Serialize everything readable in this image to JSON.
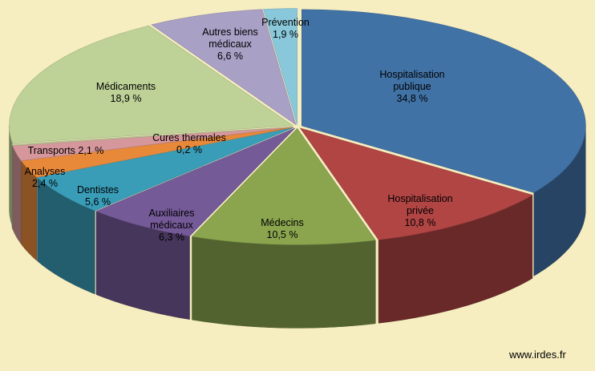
{
  "chart_data": {
    "type": "pie",
    "subtype": "3d-exploded",
    "start_angle": "12 o'clock",
    "direction": "clockwise",
    "series": [
      {
        "name": "Hospitalisation publique",
        "label_lines": [
          "Hospitalisation",
          "publique",
          "34,8 %"
        ],
        "value": 34.8,
        "color": "#4172A6"
      },
      {
        "name": "Hospitalisation privée",
        "label_lines": [
          "Hospitalisation",
          "privée",
          "10,8 %"
        ],
        "value": 10.8,
        "color": "#B14544"
      },
      {
        "name": "Médecins",
        "label_lines": [
          "Médecins",
          "10,5 %"
        ],
        "value": 10.5,
        "color": "#8BA54F"
      },
      {
        "name": "Auxiliaires médicaux",
        "label_lines": [
          "Auxiliaires",
          "médicaux",
          "6,3 %"
        ],
        "value": 6.3,
        "color": "#755A98"
      },
      {
        "name": "Dentistes",
        "label_lines": [
          "Dentistes",
          "5,6 %"
        ],
        "value": 5.6,
        "color": "#3A9DB8"
      },
      {
        "name": "Analyses",
        "label_lines": [
          "Analyses",
          "2,4 %"
        ],
        "value": 2.4,
        "color": "#E8893A"
      },
      {
        "name": "Transports",
        "label_lines": [
          "Transports   2,1 %"
        ],
        "value": 2.1,
        "color": "#D6979C"
      },
      {
        "name": "Cures thermales",
        "label_lines": [
          "Cures thermales",
          "0,2 %"
        ],
        "value": 0.2,
        "color": "#C3CE9B"
      },
      {
        "name": "Médicaments",
        "label_lines": [
          "Médicaments",
          "18,9 %"
        ],
        "value": 18.9,
        "color": "#BED298"
      },
      {
        "name": "Autres biens médicaux",
        "label_lines": [
          "Autres biens",
          "médicaux",
          "6,6 %"
        ],
        "value": 6.6,
        "color": "#A9A0C6"
      },
      {
        "name": "Prévention",
        "label_lines": [
          "Prévention",
          "1,9 %"
        ],
        "value": 1.9,
        "color": "#89C8DA"
      }
    ]
  },
  "credit": "www.irdes.fr"
}
